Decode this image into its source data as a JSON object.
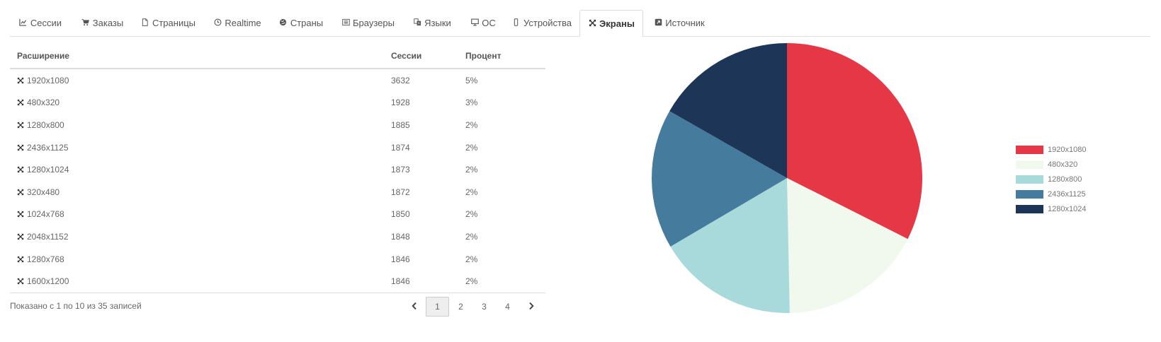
{
  "tabs": [
    {
      "label": "Сессии",
      "icon": "line-chart-icon",
      "active": false
    },
    {
      "label": "Заказы",
      "icon": "cart-icon",
      "active": false
    },
    {
      "label": "Страницы",
      "icon": "file-icon",
      "active": false
    },
    {
      "label": "Realtime",
      "icon": "clock-icon",
      "active": false
    },
    {
      "label": "Страны",
      "icon": "globe-icon",
      "active": false
    },
    {
      "label": "Браузеры",
      "icon": "list-alt-icon",
      "active": false
    },
    {
      "label": "Языки",
      "icon": "language-icon",
      "active": false
    },
    {
      "label": "ОС",
      "icon": "desktop-icon",
      "active": false
    },
    {
      "label": "Устройства",
      "icon": "mobile-icon",
      "active": false
    },
    {
      "label": "Экраны",
      "icon": "expand-icon",
      "active": true
    },
    {
      "label": "Источник",
      "icon": "external-link-icon",
      "active": false
    }
  ],
  "table": {
    "headers": {
      "resolution": "Расширение",
      "sessions": "Сессии",
      "percent": "Процент"
    },
    "rows": [
      {
        "resolution": "1920x1080",
        "sessions": "3632",
        "percent": "5%"
      },
      {
        "resolution": "480x320",
        "sessions": "1928",
        "percent": "3%"
      },
      {
        "resolution": "1280x800",
        "sessions": "1885",
        "percent": "2%"
      },
      {
        "resolution": "2436x1125",
        "sessions": "1874",
        "percent": "2%"
      },
      {
        "resolution": "1280x1024",
        "sessions": "1873",
        "percent": "2%"
      },
      {
        "resolution": "320x480",
        "sessions": "1872",
        "percent": "2%"
      },
      {
        "resolution": "1024x768",
        "sessions": "1850",
        "percent": "2%"
      },
      {
        "resolution": "2048x1152",
        "sessions": "1848",
        "percent": "2%"
      },
      {
        "resolution": "1280x768",
        "sessions": "1846",
        "percent": "2%"
      },
      {
        "resolution": "1600x1200",
        "sessions": "1846",
        "percent": "2%"
      }
    ]
  },
  "pagination": {
    "info": "Показано с 1 по 10 из 35 записей",
    "pages": [
      "1",
      "2",
      "3",
      "4"
    ],
    "current": "1"
  },
  "chart_data": {
    "type": "pie",
    "title": "",
    "legend_position": "right",
    "categories": [
      "1920x1080",
      "480x320",
      "1280x800",
      "2436x1125",
      "1280x1024"
    ],
    "values": [
      3632,
      1928,
      1885,
      1874,
      1873
    ],
    "colors": [
      "#e63746",
      "#f1f9ee",
      "#a8dadc",
      "#457b9d",
      "#1d3557"
    ]
  }
}
